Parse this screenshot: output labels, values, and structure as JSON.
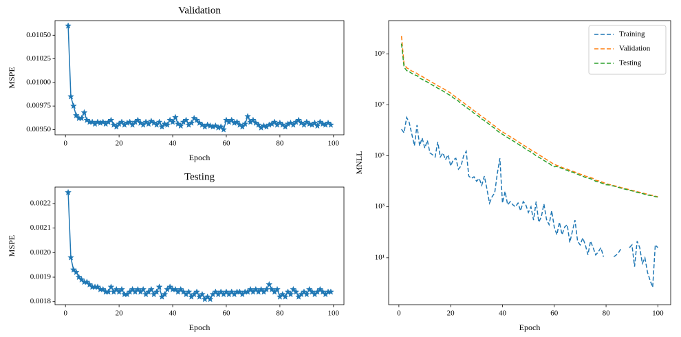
{
  "chart_data": [
    {
      "type": "line",
      "title": "Validation",
      "xlabel": "Epoch",
      "ylabel": "MSPE",
      "color": "#1f77b4",
      "marker": "star",
      "linestyle": "solid",
      "x": [
        1,
        2,
        3,
        4,
        5,
        6,
        7,
        8,
        9,
        10,
        11,
        12,
        13,
        14,
        15,
        16,
        17,
        18,
        19,
        20,
        21,
        22,
        23,
        24,
        25,
        26,
        27,
        28,
        29,
        30,
        31,
        32,
        33,
        34,
        35,
        36,
        37,
        38,
        39,
        40,
        41,
        42,
        43,
        44,
        45,
        46,
        47,
        48,
        49,
        50,
        51,
        52,
        53,
        54,
        55,
        56,
        57,
        58,
        59,
        60,
        61,
        62,
        63,
        64,
        65,
        66,
        67,
        68,
        69,
        70,
        71,
        72,
        73,
        74,
        75,
        76,
        77,
        78,
        79,
        80,
        81,
        82,
        83,
        84,
        85,
        86,
        87,
        88,
        89,
        90,
        91,
        92,
        93,
        94,
        95,
        96,
        97,
        98,
        99
      ],
      "values": [
        0.0106,
        0.00985,
        0.00975,
        0.00965,
        0.00962,
        0.00962,
        0.00968,
        0.0096,
        0.00958,
        0.00958,
        0.00956,
        0.00958,
        0.00957,
        0.00958,
        0.00956,
        0.00958,
        0.0096,
        0.00955,
        0.00953,
        0.00956,
        0.00958,
        0.00955,
        0.00957,
        0.00958,
        0.00955,
        0.00958,
        0.0096,
        0.00957,
        0.00955,
        0.00958,
        0.00956,
        0.00959,
        0.00957,
        0.00955,
        0.00958,
        0.00953,
        0.00956,
        0.00955,
        0.0096,
        0.00958,
        0.00963,
        0.00956,
        0.00954,
        0.00958,
        0.0096,
        0.00955,
        0.00957,
        0.00962,
        0.0096,
        0.00957,
        0.00955,
        0.00953,
        0.00955,
        0.00954,
        0.00953,
        0.00954,
        0.00952,
        0.00953,
        0.0095,
        0.0096,
        0.00958,
        0.0096,
        0.00957,
        0.00958,
        0.00955,
        0.00953,
        0.00956,
        0.00964,
        0.00958,
        0.0096,
        0.00957,
        0.00955,
        0.00952,
        0.00954,
        0.00953,
        0.00955,
        0.00956,
        0.00958,
        0.00955,
        0.00957,
        0.00955,
        0.00953,
        0.00956,
        0.00957,
        0.00955,
        0.00958,
        0.0096,
        0.00957,
        0.00955,
        0.00958,
        0.00956,
        0.00955,
        0.00957,
        0.00954,
        0.00958,
        0.00956,
        0.00955,
        0.00957,
        0.00955
      ],
      "xlim": [
        -3.9,
        103.9
      ],
      "ylim": [
        0.009445,
        0.010655
      ],
      "xticks": [
        0,
        20,
        40,
        60,
        80,
        100
      ],
      "yticks": [
        {
          "value": 0.0095,
          "label": "0.00950"
        },
        0.00975,
        {
          "value": 0.01,
          "label": "0.01000"
        },
        0.01025,
        {
          "value": 0.0105,
          "label": "0.01050"
        }
      ]
    },
    {
      "type": "line",
      "title": "Testing",
      "xlabel": "Epoch",
      "ylabel": "MSPE",
      "color": "#1f77b4",
      "marker": "star",
      "linestyle": "solid",
      "x": [
        1,
        2,
        3,
        4,
        5,
        6,
        7,
        8,
        9,
        10,
        11,
        12,
        13,
        14,
        15,
        16,
        17,
        18,
        19,
        20,
        21,
        22,
        23,
        24,
        25,
        26,
        27,
        28,
        29,
        30,
        31,
        32,
        33,
        34,
        35,
        36,
        37,
        38,
        39,
        40,
        41,
        42,
        43,
        44,
        45,
        46,
        47,
        48,
        49,
        50,
        51,
        52,
        53,
        54,
        55,
        56,
        57,
        58,
        59,
        60,
        61,
        62,
        63,
        64,
        65,
        66,
        67,
        68,
        69,
        70,
        71,
        72,
        73,
        74,
        75,
        76,
        77,
        78,
        79,
        80,
        81,
        82,
        83,
        84,
        85,
        86,
        87,
        88,
        89,
        90,
        91,
        92,
        93,
        94,
        95,
        96,
        97,
        98,
        99
      ],
      "values": [
        0.002245,
        0.00198,
        0.00193,
        0.00192,
        0.0019,
        0.00189,
        0.00188,
        0.00188,
        0.00187,
        0.00186,
        0.00186,
        0.00186,
        0.00185,
        0.00185,
        0.00184,
        0.00184,
        0.00186,
        0.00184,
        0.00185,
        0.00184,
        0.00185,
        0.00183,
        0.00183,
        0.00184,
        0.00185,
        0.00184,
        0.00185,
        0.00184,
        0.00185,
        0.00183,
        0.00184,
        0.00185,
        0.00183,
        0.00184,
        0.00186,
        0.00182,
        0.00183,
        0.00185,
        0.00186,
        0.00185,
        0.00185,
        0.00184,
        0.00185,
        0.00184,
        0.00183,
        0.00184,
        0.00182,
        0.00183,
        0.00184,
        0.00182,
        0.00183,
        0.00181,
        0.00182,
        0.00181,
        0.00183,
        0.00184,
        0.00183,
        0.00184,
        0.00183,
        0.00184,
        0.00183,
        0.00184,
        0.00183,
        0.00184,
        0.00184,
        0.00183,
        0.00184,
        0.00184,
        0.00185,
        0.00184,
        0.00185,
        0.00184,
        0.00185,
        0.00184,
        0.00185,
        0.00187,
        0.00185,
        0.00184,
        0.00185,
        0.00182,
        0.00183,
        0.00182,
        0.00184,
        0.00183,
        0.00185,
        0.00184,
        0.00182,
        0.00183,
        0.00184,
        0.00183,
        0.00185,
        0.00184,
        0.00183,
        0.00184,
        0.00185,
        0.00184,
        0.00183,
        0.00184,
        0.00184
      ],
      "xlim": [
        -3.9,
        103.9
      ],
      "ylim": [
        0.001788,
        0.002267
      ],
      "xticks": [
        0,
        20,
        40,
        60,
        80,
        100
      ],
      "yticks": [
        0.0018,
        0.0019,
        {
          "value": 0.002,
          "label": "0.0020"
        },
        0.0021,
        0.0022
      ]
    },
    {
      "type": "line",
      "xlabel": "Epoch",
      "ylabel": "MNLL",
      "yscale": "log",
      "linestyle": "dashed",
      "legend": "upper right",
      "x": [
        1,
        2,
        3,
        4,
        5,
        6,
        7,
        8,
        9,
        10,
        11,
        12,
        13,
        14,
        15,
        16,
        17,
        18,
        19,
        20,
        21,
        22,
        23,
        24,
        25,
        26,
        27,
        28,
        29,
        30,
        31,
        32,
        33,
        34,
        35,
        36,
        37,
        38,
        39,
        40,
        41,
        42,
        43,
        44,
        45,
        46,
        47,
        48,
        49,
        50,
        51,
        52,
        53,
        54,
        55,
        56,
        57,
        58,
        59,
        60,
        61,
        62,
        63,
        64,
        65,
        66,
        67,
        68,
        69,
        70,
        71,
        72,
        73,
        74,
        75,
        76,
        77,
        78,
        79,
        80,
        81,
        82,
        83,
        84,
        85,
        86,
        87,
        88,
        89,
        90,
        91,
        92,
        93,
        94,
        95,
        96,
        97,
        98,
        99,
        100
      ],
      "series": [
        {
          "name": "Training",
          "color": "#1f77b4",
          "values": [
            1100000.0,
            800000.0,
            3200000.0,
            2000000.0,
            700000.0,
            250000.0,
            1600000.0,
            250000.0,
            500000.0,
            200000.0,
            400000.0,
            130000.0,
            110000.0,
            90000.0,
            350000.0,
            90000.0,
            130000.0,
            70000.0,
            110000.0,
            40000.0,
            70000.0,
            80000.0,
            30000.0,
            40000.0,
            100000.0,
            150000.0,
            16000.0,
            13000.0,
            15000.0,
            10000.0,
            13000.0,
            7000.0,
            16000.0,
            5000.0,
            1400.0,
            2500.0,
            3500.0,
            20000.0,
            80000.0,
            1400.0,
            4000.0,
            1200.0,
            1600.0,
            1200.0,
            1000.0,
            1400.0,
            700,
            1600.0,
            1200.0,
            600,
            1000.0,
            300,
            1600.0,
            250,
            400,
            1300.0,
            320,
            200,
            700,
            160,
            80,
            250,
            80,
            160,
            200,
            40,
            110,
            300,
            45,
            32,
            60,
            32,
            13,
            45,
            25,
            13,
            17,
            25,
            11,
            null,
            null,
            null,
            11,
            13,
            17,
            25,
            null,
            null,
            25,
            32,
            4.5,
            45,
            25,
            6,
            10,
            2.7,
            1.3,
            0.7,
            32,
            25
          ]
        },
        {
          "name": "Validation",
          "color": "#ff7f0e",
          "values": [
            5000000000.0,
            400000000.0,
            280000000.0,
            250000000.0,
            210000000.0,
            190000000.0,
            170000000.0,
            140000000.0,
            130000000.0,
            110000000.0,
            98000000.0,
            85000000.0,
            74000000.0,
            65000000.0,
            56000000.0,
            50000000.0,
            44000000.0,
            38000000.0,
            33000000.0,
            29000000.0,
            24000000.0,
            20000000.0,
            17000000.0,
            14000000.0,
            12000000.0,
            10000000.0,
            8500000.0,
            7100000.0,
            5900000.0,
            5000000.0,
            4200000.0,
            3500000.0,
            3000000.0,
            2500000.0,
            2100000.0,
            1700000.0,
            1500000.0,
            1200000.0,
            1000000.0,
            870000.0,
            750000.0,
            650000.0,
            560000.0,
            490000.0,
            420000.0,
            360000.0,
            310000.0,
            270000.0,
            230000.0,
            200000.0,
            170000.0,
            150000.0,
            130000.0,
            110000.0,
            96000.0,
            83000.0,
            71000.0,
            62000.0,
            53000.0,
            46000.0,
            42000.0,
            39000.0,
            35000.0,
            32000.0,
            30000.0,
            27000.0,
            25000.0,
            23000.0,
            21000.0,
            19000.0,
            18000.0,
            16000.0,
            15000.0,
            14000.0,
            13000.0,
            11000.0,
            10500.0,
            9700.0,
            8900.0,
            8100.0,
            7600.0,
            7200.0,
            6800.0,
            6400.0,
            6000.0,
            5600.0,
            5300.0,
            5000.0,
            4700.0,
            4400.0,
            4200.0,
            3900.0,
            3700.0,
            3500.0,
            3300.0,
            3100.0,
            2900.0,
            2800.0,
            2600.0,
            2500.0
          ]
        },
        {
          "name": "Testing",
          "color": "#2ca02c",
          "values": [
            2500000000.0,
            300000000.0,
            220000000.0,
            200000000.0,
            170000000.0,
            150000000.0,
            140000000.0,
            110000000.0,
            100000000.0,
            88000000.0,
            78000000.0,
            68000000.0,
            59000000.0,
            52000000.0,
            45000000.0,
            40000000.0,
            35000000.0,
            30000000.0,
            26000000.0,
            23000000.0,
            19000000.0,
            16000000.0,
            14000000.0,
            11000000.0,
            9600000.0,
            8000000.0,
            6800000.0,
            5700000.0,
            4700000.0,
            4000000.0,
            3400000.0,
            2800000.0,
            2400000.0,
            2000000.0,
            1700000.0,
            1400000.0,
            1200000.0,
            960000.0,
            800000.0,
            700000.0,
            600000.0,
            520000.0,
            450000.0,
            390000.0,
            340000.0,
            290000.0,
            250000.0,
            220000.0,
            180000.0,
            160000.0,
            140000.0,
            120000.0,
            100000.0,
            88000.0,
            77000.0,
            66000.0,
            57000.0,
            50000.0,
            42000.0,
            37000.0,
            38000.0,
            35000.0,
            32000.0,
            29000.0,
            27000.0,
            24000.0,
            23000.0,
            21000.0,
            19000.0,
            17000.0,
            16000.0,
            14000.0,
            13500.0,
            12600.0,
            11700.0,
            9900.0,
            9500.0,
            8700.0,
            8000.0,
            7300.0,
            7200.0,
            6800.0,
            6500.0,
            6100.0,
            5700.0,
            5300.0,
            5000.0,
            4750.0,
            4500.0,
            4200.0,
            4000.0,
            3700.0,
            3500.0,
            3300.0,
            3100.0,
            2900.0,
            2800.0,
            2700.0,
            2500.0,
            2400.0
          ]
        }
      ],
      "xlim": [
        -3.95,
        104.95
      ],
      "ylim": [
        0.145,
        20000000000.0
      ],
      "xticks": [
        0,
        20,
        40,
        60,
        80,
        100
      ],
      "yticks": [
        {
          "value": 10,
          "label": "10¹"
        },
        {
          "value": 1000,
          "label": "10³"
        },
        {
          "value": 100000,
          "label": "10⁵"
        },
        {
          "value": 10000000,
          "label": "10⁷"
        },
        {
          "value": 1000000000,
          "label": "10⁹"
        }
      ]
    }
  ]
}
